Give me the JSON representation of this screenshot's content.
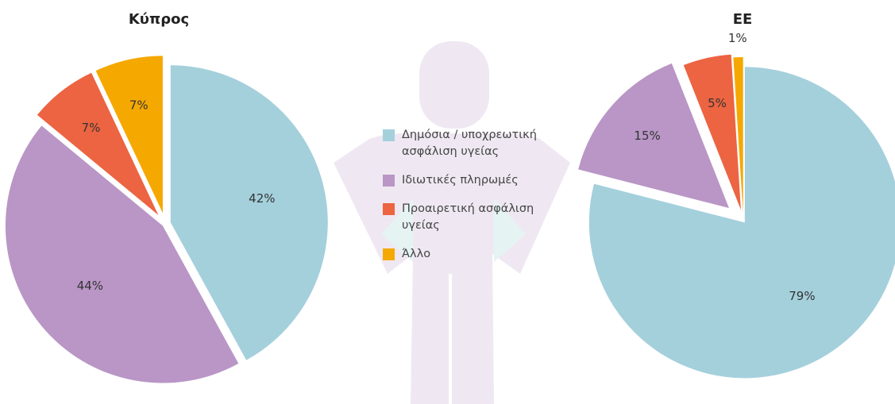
{
  "chart_data": [
    {
      "type": "pie",
      "title": "Κύπρος",
      "categories": [
        "Δημόσια / υποχρεωτική ασφάλιση υγείας",
        "Ιδιωτικές πληρωμές",
        "Προαιρετική ασφάλιση υγείας",
        "Άλλο"
      ],
      "values": [
        42,
        44,
        7,
        7
      ],
      "value_labels": [
        "42%",
        "44%",
        "7%",
        "7%"
      ],
      "colors": [
        "#a4d0dc",
        "#b996c6",
        "#ec6441",
        "#f5a800"
      ]
    },
    {
      "type": "pie",
      "title": "ΕΕ",
      "categories": [
        "Δημόσια / υποχρεωτική ασφάλιση υγείας",
        "Ιδιωτικές πληρωμές",
        "Προαιρετική ασφάλιση υγείας",
        "Άλλο"
      ],
      "values": [
        79,
        15,
        5,
        1
      ],
      "value_labels": [
        "79%",
        "15%",
        "5%",
        "1%"
      ],
      "colors": [
        "#a4d0dc",
        "#b996c6",
        "#ec6441",
        "#f5a800"
      ]
    }
  ]
}
